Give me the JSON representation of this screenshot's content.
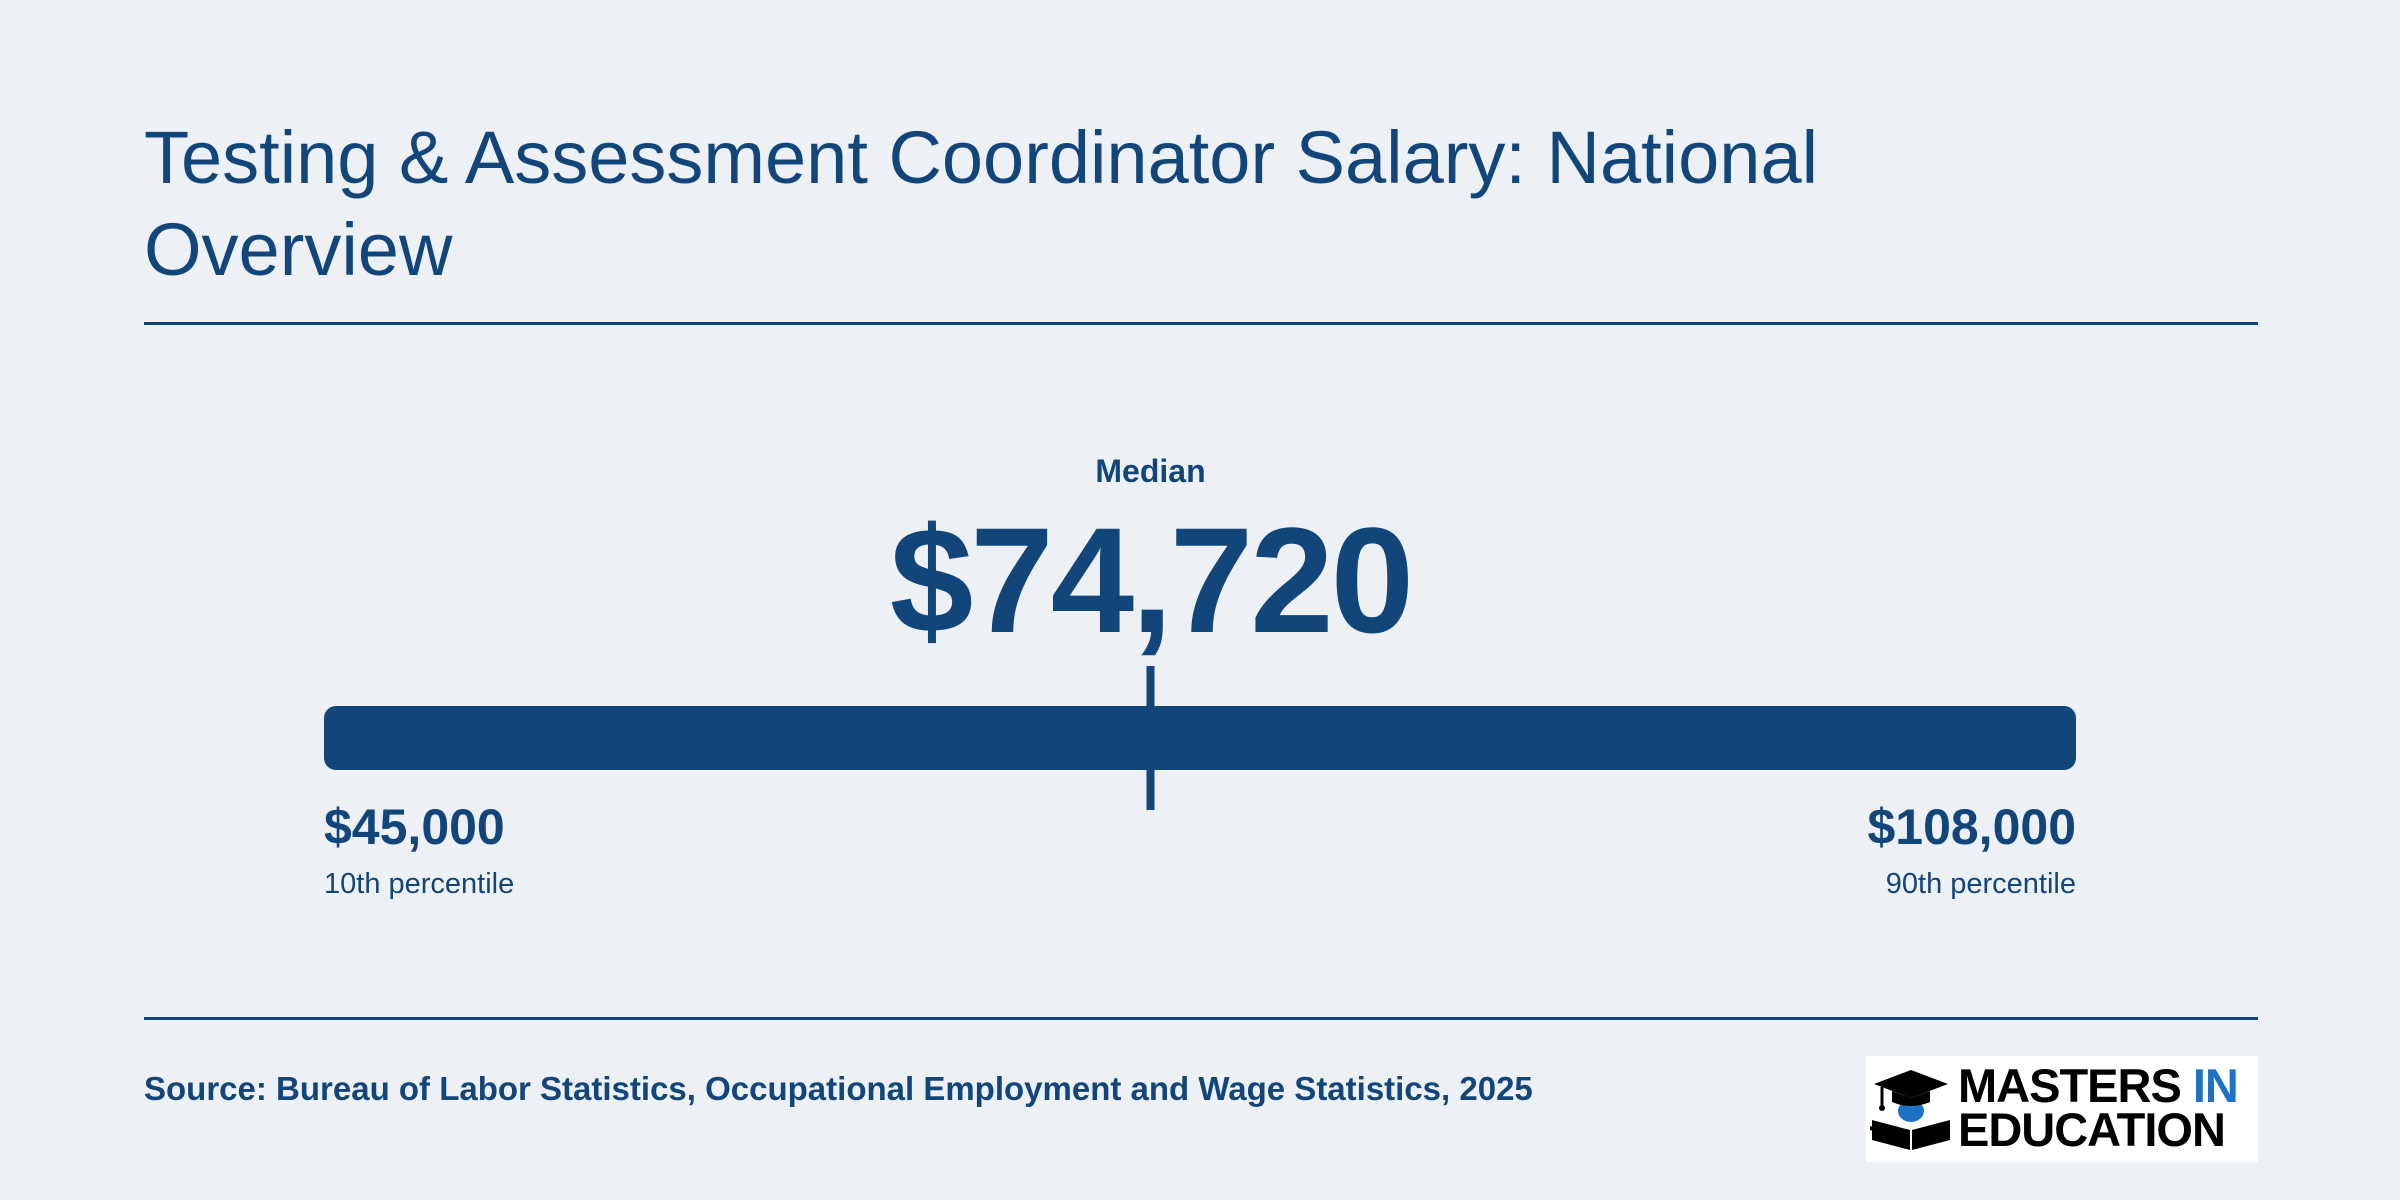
{
  "page": {
    "title": "Testing & Assessment Coordinator Salary: National Overview",
    "source": "Source: Bureau of Labor Statistics, Occupational Employment and Wage Statistics, 2025",
    "logo": {
      "line1_a": "MASTERS",
      "line1_b": "IN",
      "line2": "EDUCATION",
      "icon": "graduation-cap-book-icon"
    }
  },
  "colors": {
    "background": "#edf0f5",
    "primary": "#12457a",
    "logo_accent": "#1e72c6"
  },
  "chart_data": {
    "type": "range",
    "min": {
      "value": 45000,
      "label": "$45,000",
      "sublabel": "10th percentile"
    },
    "max": {
      "value": 108000,
      "label": "$108,000",
      "sublabel": "90th percentile"
    },
    "median": {
      "value": 74720,
      "label": "$74,720",
      "caption": "Median"
    }
  }
}
